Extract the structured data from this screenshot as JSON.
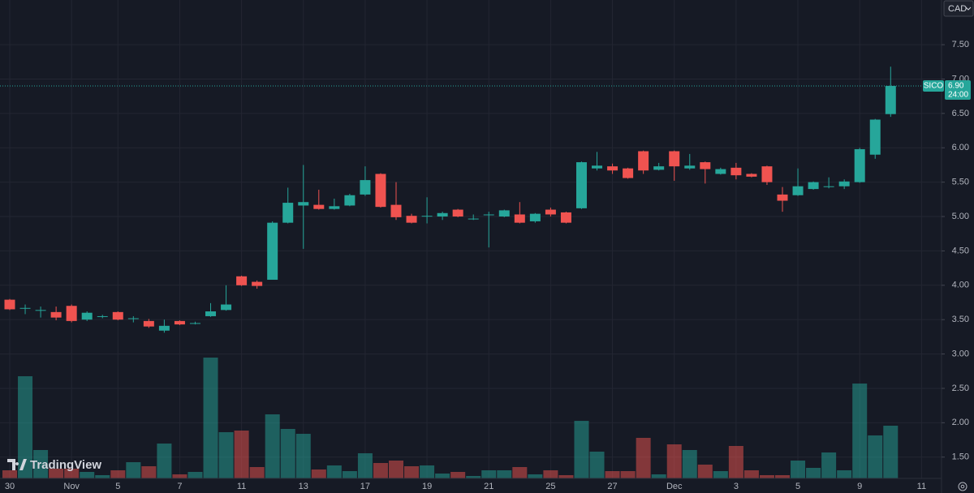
{
  "chart_data": {
    "type": "candlestick",
    "currency": "CAD",
    "watermark": "TradingView",
    "symbol": "SICO",
    "last_price": {
      "value": 6.9,
      "label": "6.90"
    },
    "countdown": "24:00",
    "up_color": "#26a69a",
    "down_color": "#ef5350",
    "grid": true,
    "categories": [
      "30",
      null,
      null,
      null,
      "Nov",
      null,
      null,
      "5",
      null,
      null,
      null,
      "7",
      null,
      null,
      null,
      "11",
      null,
      null,
      null,
      "13",
      null,
      null,
      null,
      "17",
      null,
      null,
      null,
      "19",
      null,
      null,
      null,
      "21",
      null,
      null,
      null,
      "25",
      null,
      null,
      null,
      "27",
      null,
      null,
      null,
      "Dec",
      null,
      null,
      null,
      "3",
      null,
      null,
      null,
      "5",
      null,
      null,
      null,
      "9",
      null,
      null,
      null,
      "11"
    ],
    "open": [
      3.79,
      3.66,
      3.63,
      3.61,
      3.7,
      3.5,
      3.54,
      3.61,
      3.51,
      3.48,
      3.34,
      3.48,
      3.44,
      3.55,
      3.64,
      4.13,
      4.05,
      4.08,
      4.91,
      5.16,
      5.17,
      5.11,
      5.16,
      5.32,
      5.62,
      5.17,
      5.01,
      5.01,
      5.0,
      5.1,
      4.96,
      5.02,
      5.0,
      5.03,
      4.93,
      5.1,
      5.06,
      5.12,
      5.7,
      5.73,
      5.7,
      5.95,
      5.68,
      5.95,
      5.7,
      5.79,
      5.62,
      5.71,
      5.62,
      5.73,
      5.32,
      5.31,
      5.4,
      5.43,
      5.44,
      5.5,
      5.9,
      6.49,
      null,
      null
    ],
    "high": [
      3.8,
      3.72,
      3.69,
      3.69,
      3.72,
      3.62,
      3.57,
      3.62,
      3.55,
      3.51,
      3.5,
      3.49,
      3.47,
      3.74,
      4.0,
      4.14,
      4.07,
      4.93,
      5.42,
      5.75,
      5.39,
      5.26,
      5.33,
      5.73,
      5.63,
      5.5,
      5.04,
      5.28,
      5.07,
      5.11,
      5.03,
      5.07,
      5.1,
      5.21,
      5.05,
      5.13,
      5.07,
      5.8,
      5.94,
      5.77,
      5.71,
      5.96,
      5.78,
      5.96,
      5.91,
      5.8,
      5.71,
      5.78,
      5.63,
      5.74,
      5.43,
      5.7,
      5.51,
      5.57,
      5.54,
      6.0,
      6.42,
      7.18,
      null,
      null
    ],
    "low": [
      3.64,
      3.58,
      3.53,
      3.49,
      3.46,
      3.48,
      3.52,
      3.49,
      3.46,
      3.38,
      3.31,
      3.42,
      3.43,
      3.54,
      3.63,
      3.99,
      3.95,
      4.08,
      4.9,
      4.53,
      5.1,
      5.1,
      5.15,
      5.3,
      5.13,
      4.95,
      4.9,
      4.9,
      4.95,
      4.99,
      4.95,
      4.55,
      4.99,
      4.9,
      4.91,
      5.0,
      4.9,
      5.11,
      5.67,
      5.62,
      5.55,
      5.62,
      5.67,
      5.52,
      5.68,
      5.48,
      5.61,
      5.54,
      5.57,
      5.46,
      5.07,
      5.3,
      5.39,
      5.41,
      5.4,
      5.49,
      5.84,
      6.45,
      null,
      null
    ],
    "close": [
      3.65,
      3.67,
      3.64,
      3.53,
      3.48,
      3.6,
      3.55,
      3.5,
      3.52,
      3.4,
      3.41,
      3.43,
      3.45,
      3.62,
      3.72,
      4.0,
      3.99,
      4.91,
      5.2,
      5.21,
      5.11,
      5.15,
      5.31,
      5.53,
      5.14,
      4.99,
      4.91,
      5.01,
      5.05,
      5.0,
      4.97,
      5.03,
      5.09,
      4.91,
      5.04,
      5.03,
      4.91,
      5.79,
      5.74,
      5.67,
      5.56,
      5.67,
      5.73,
      5.73,
      5.74,
      5.69,
      5.69,
      5.6,
      5.58,
      5.5,
      5.23,
      5.44,
      5.5,
      5.44,
      5.51,
      5.98,
      6.41,
      6.9,
      null,
      null
    ],
    "volume": [
      10,
      126,
      35,
      12,
      12,
      8,
      4,
      10,
      20,
      15,
      43,
      5,
      8,
      149,
      57,
      59,
      14,
      79,
      61,
      55,
      11,
      16,
      9,
      31,
      19,
      22,
      15,
      16,
      6,
      8,
      3,
      10,
      10,
      14,
      5,
      10,
      4,
      71,
      33,
      9,
      9,
      50,
      5,
      42,
      35,
      17,
      9,
      40,
      10,
      4,
      4,
      22,
      13,
      32,
      10,
      117,
      53,
      65,
      null,
      null
    ],
    "volume_ylim": [
      0,
      160
    ],
    "ylim": [
      1.19,
      8.15
    ],
    "yticks": [
      {
        "value": 1.5,
        "label": "1.50"
      },
      {
        "value": 2,
        "label": "2.00"
      },
      {
        "value": 2.5,
        "label": "2.50"
      },
      {
        "value": 3,
        "label": "3.00"
      },
      {
        "value": 3.5,
        "label": "3.50"
      },
      {
        "value": 4,
        "label": "4.00"
      },
      {
        "value": 4.5,
        "label": "4.50"
      },
      {
        "value": 5,
        "label": "5.00"
      },
      {
        "value": 5.5,
        "label": "5.50"
      },
      {
        "value": 6,
        "label": "6.00"
      },
      {
        "value": 6.5,
        "label": "6.50"
      },
      {
        "value": 7,
        "label": "7.00"
      },
      {
        "value": 7.5,
        "label": "7.50"
      }
    ]
  }
}
